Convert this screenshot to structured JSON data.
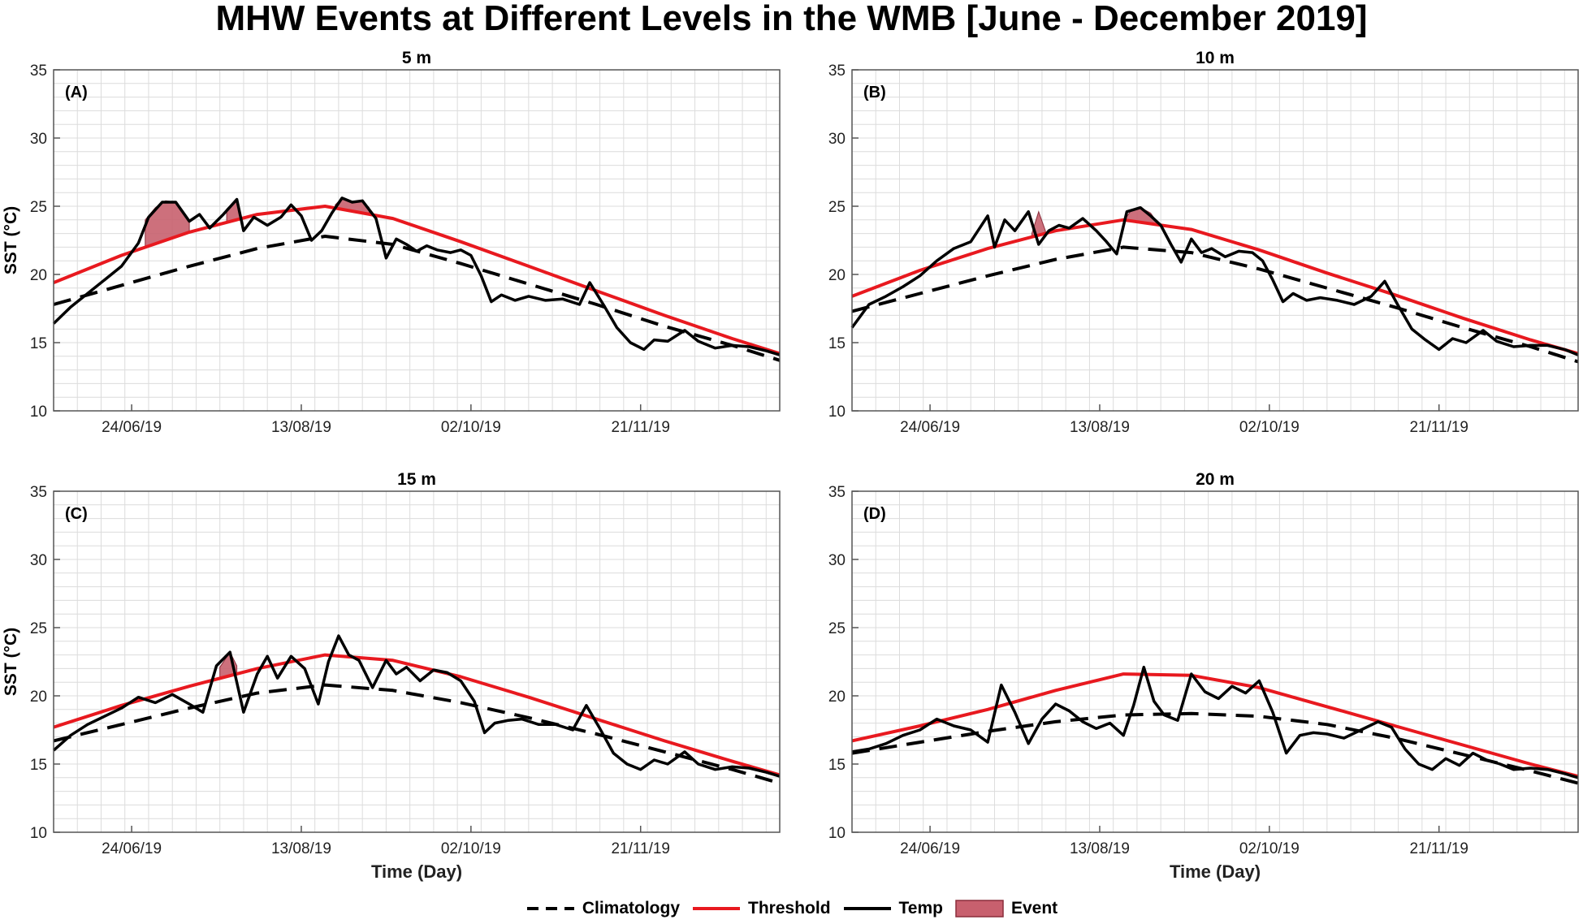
{
  "figure": {
    "title": "MHW Events at Different Levels in the WMB [June - December 2019]"
  },
  "legend": {
    "items": [
      {
        "label": "Climatology",
        "style": "dashed",
        "color": "#000000"
      },
      {
        "label": "Threshold",
        "style": "line",
        "color": "#e8191f"
      },
      {
        "label": "Temp",
        "style": "line",
        "color": "#000000"
      },
      {
        "label": "Event",
        "style": "fill",
        "color": "#c8606e"
      }
    ]
  },
  "chart_data": [
    {
      "type": "line",
      "panel_label": "(A)",
      "title": "5 m",
      "xlabel": "",
      "ylabel": "SST (°C)",
      "ylim": [
        10,
        35
      ],
      "yticks": [
        10,
        15,
        20,
        25,
        30,
        35
      ],
      "xlim": [
        0,
        214
      ],
      "xticks": [
        {
          "day": 23,
          "label": "24/06/19"
        },
        {
          "day": 73,
          "label": "13/08/19"
        },
        {
          "day": 123,
          "label": "02/10/19"
        },
        {
          "day": 173,
          "label": "21/11/19"
        }
      ],
      "grid": true,
      "series": [
        {
          "name": "Climatology",
          "x": [
            0,
            20,
            40,
            60,
            80,
            100,
            120,
            140,
            160,
            180,
            200,
            214
          ],
          "values": [
            17.8,
            19.2,
            20.6,
            21.9,
            22.8,
            22.2,
            20.8,
            19.3,
            17.8,
            16.2,
            14.8,
            13.7
          ]
        },
        {
          "name": "Threshold",
          "x": [
            0,
            20,
            40,
            60,
            80,
            100,
            120,
            140,
            160,
            180,
            200,
            214
          ],
          "values": [
            19.4,
            21.4,
            23.1,
            24.4,
            25.0,
            24.1,
            22.4,
            20.6,
            18.8,
            17.0,
            15.3,
            14.2
          ]
        },
        {
          "name": "Temp",
          "x": [
            0,
            5,
            10,
            15,
            20,
            25,
            28,
            32,
            36,
            40,
            43,
            46,
            50,
            54,
            56,
            59,
            63,
            67,
            70,
            73,
            76,
            79,
            82,
            85,
            88,
            91,
            95,
            98,
            101,
            104,
            107,
            110,
            113,
            117,
            120,
            123,
            126,
            129,
            132,
            136,
            140,
            145,
            150,
            155,
            158,
            162,
            166,
            170,
            174,
            177,
            181,
            186,
            190,
            195,
            200,
            205,
            210,
            214
          ],
          "values": [
            16.4,
            17.6,
            18.6,
            19.6,
            20.6,
            22.3,
            24.2,
            25.3,
            25.3,
            23.9,
            24.4,
            23.4,
            24.4,
            25.5,
            23.2,
            24.2,
            23.6,
            24.2,
            25.1,
            24.3,
            22.5,
            23.2,
            24.5,
            25.6,
            25.3,
            25.4,
            24.1,
            21.2,
            22.6,
            22.2,
            21.7,
            22.1,
            21.8,
            21.6,
            21.8,
            21.4,
            19.9,
            18.0,
            18.5,
            18.1,
            18.4,
            18.1,
            18.2,
            17.8,
            19.4,
            17.8,
            16.1,
            15.0,
            14.5,
            15.2,
            15.1,
            15.9,
            15.1,
            14.6,
            14.8,
            14.7,
            14.4,
            14.1
          ]
        }
      ],
      "events": [
        {
          "x": [
            27,
            30,
            33,
            36,
            38,
            40
          ],
          "values": [
            24.0,
            24.9,
            25.4,
            25.3,
            24.6,
            23.9
          ]
        },
        {
          "x": [
            51,
            54,
            55
          ],
          "values": [
            24.8,
            25.5,
            24.6
          ]
        },
        {
          "x": [
            83,
            85,
            88,
            91,
            93
          ],
          "values": [
            25.1,
            25.6,
            25.3,
            25.4,
            24.9
          ]
        }
      ]
    },
    {
      "type": "line",
      "panel_label": "(B)",
      "title": "10 m",
      "xlabel": "",
      "ylabel": "",
      "ylim": [
        10,
        35
      ],
      "yticks": [
        10,
        15,
        20,
        25,
        30,
        35
      ],
      "xlim": [
        0,
        214
      ],
      "xticks": [
        {
          "day": 23,
          "label": "24/06/19"
        },
        {
          "day": 73,
          "label": "13/08/19"
        },
        {
          "day": 123,
          "label": "02/10/19"
        },
        {
          "day": 173,
          "label": "21/11/19"
        }
      ],
      "grid": true,
      "series": [
        {
          "name": "Climatology",
          "x": [
            0,
            20,
            40,
            60,
            80,
            100,
            120,
            140,
            160,
            180,
            200,
            214
          ],
          "values": [
            17.3,
            18.6,
            19.9,
            21.1,
            22.0,
            21.6,
            20.4,
            19.0,
            17.6,
            16.1,
            14.7,
            13.6
          ]
        },
        {
          "name": "Threshold",
          "x": [
            0,
            20,
            40,
            60,
            80,
            100,
            120,
            140,
            160,
            180,
            200,
            214
          ],
          "values": [
            18.4,
            20.3,
            21.9,
            23.2,
            24.0,
            23.3,
            21.8,
            20.1,
            18.5,
            16.8,
            15.2,
            14.2
          ]
        },
        {
          "name": "Temp",
          "x": [
            0,
            5,
            10,
            15,
            20,
            25,
            30,
            35,
            40,
            42,
            45,
            48,
            52,
            55,
            58,
            61,
            64,
            68,
            72,
            75,
            78,
            81,
            85,
            88,
            91,
            94,
            97,
            100,
            103,
            106,
            110,
            114,
            118,
            121,
            124,
            127,
            130,
            134,
            138,
            143,
            148,
            153,
            157,
            161,
            165,
            169,
            173,
            177,
            181,
            186,
            190,
            195,
            200,
            205,
            210,
            214
          ],
          "values": [
            16.1,
            17.8,
            18.4,
            19.1,
            19.9,
            21.0,
            21.9,
            22.4,
            24.3,
            22.0,
            24.0,
            23.2,
            24.6,
            22.2,
            23.2,
            23.6,
            23.4,
            24.1,
            23.2,
            22.4,
            21.5,
            24.6,
            24.9,
            24.3,
            23.6,
            22.2,
            20.9,
            22.6,
            21.6,
            21.9,
            21.3,
            21.7,
            21.6,
            21.0,
            19.6,
            18.0,
            18.6,
            18.1,
            18.3,
            18.1,
            17.8,
            18.4,
            19.5,
            17.7,
            16.0,
            15.2,
            14.5,
            15.3,
            15.0,
            15.9,
            15.1,
            14.7,
            14.8,
            14.8,
            14.5,
            14.1
          ]
        }
      ],
      "events": [
        {
          "x": [
            53,
            55,
            57
          ],
          "values": [
            23.0,
            24.6,
            23.2
          ]
        },
        {
          "x": [
            80,
            82,
            85,
            88,
            90
          ],
          "values": [
            23.9,
            24.6,
            24.9,
            24.5,
            23.8
          ]
        }
      ]
    },
    {
      "type": "line",
      "panel_label": "(C)",
      "title": "15 m",
      "xlabel": "Time (Day)",
      "ylabel": "SST (°C)",
      "ylim": [
        10,
        35
      ],
      "yticks": [
        10,
        15,
        20,
        25,
        30,
        35
      ],
      "xlim": [
        0,
        214
      ],
      "xticks": [
        {
          "day": 23,
          "label": "24/06/19"
        },
        {
          "day": 73,
          "label": "13/08/19"
        },
        {
          "day": 123,
          "label": "02/10/19"
        },
        {
          "day": 173,
          "label": "21/11/19"
        }
      ],
      "grid": true,
      "series": [
        {
          "name": "Climatology",
          "x": [
            0,
            20,
            40,
            60,
            80,
            100,
            120,
            140,
            160,
            180,
            200,
            214
          ],
          "values": [
            16.7,
            17.9,
            19.1,
            20.2,
            20.8,
            20.4,
            19.5,
            18.4,
            17.2,
            15.9,
            14.6,
            13.6
          ]
        },
        {
          "name": "Threshold",
          "x": [
            0,
            20,
            40,
            60,
            80,
            100,
            120,
            140,
            160,
            180,
            200,
            214
          ],
          "values": [
            17.7,
            19.3,
            20.7,
            22.0,
            23.0,
            22.6,
            21.4,
            19.9,
            18.3,
            16.7,
            15.2,
            14.2
          ]
        },
        {
          "name": "Temp",
          "x": [
            0,
            5,
            10,
            15,
            20,
            25,
            30,
            35,
            40,
            44,
            48,
            52,
            56,
            60,
            63,
            66,
            70,
            74,
            78,
            81,
            84,
            87,
            90,
            94,
            98,
            101,
            104,
            108,
            112,
            116,
            120,
            124,
            127,
            130,
            134,
            138,
            143,
            148,
            153,
            157,
            161,
            165,
            169,
            173,
            177,
            181,
            186,
            190,
            195,
            200,
            205,
            210,
            214
          ],
          "values": [
            16.0,
            17.1,
            17.9,
            18.5,
            19.1,
            19.9,
            19.5,
            20.1,
            19.4,
            18.8,
            22.2,
            23.2,
            18.8,
            21.6,
            22.9,
            21.3,
            22.9,
            22.0,
            19.4,
            22.5,
            24.4,
            23.0,
            22.6,
            20.6,
            22.6,
            21.6,
            22.1,
            21.1,
            21.9,
            21.7,
            21.1,
            19.6,
            17.3,
            18.0,
            18.2,
            18.3,
            17.9,
            17.9,
            17.5,
            19.3,
            17.6,
            15.8,
            15.0,
            14.6,
            15.3,
            15.0,
            15.9,
            15.0,
            14.6,
            14.8,
            14.7,
            14.4,
            14.1
          ]
        }
      ],
      "events": [
        {
          "x": [
            49,
            52,
            54
          ],
          "values": [
            22.1,
            23.2,
            22.2
          ]
        }
      ]
    },
    {
      "type": "line",
      "panel_label": "(D)",
      "title": "20 m",
      "xlabel": "Time (Day)",
      "ylabel": "",
      "ylim": [
        10,
        35
      ],
      "yticks": [
        10,
        15,
        20,
        25,
        30,
        35
      ],
      "xlim": [
        0,
        214
      ],
      "xticks": [
        {
          "day": 23,
          "label": "24/06/19"
        },
        {
          "day": 73,
          "label": "13/08/19"
        },
        {
          "day": 123,
          "label": "02/10/19"
        },
        {
          "day": 173,
          "label": "21/11/19"
        }
      ],
      "grid": true,
      "series": [
        {
          "name": "Climatology",
          "x": [
            0,
            20,
            40,
            60,
            80,
            100,
            120,
            140,
            160,
            180,
            200,
            214
          ],
          "values": [
            15.8,
            16.6,
            17.4,
            18.1,
            18.6,
            18.7,
            18.5,
            17.9,
            16.9,
            15.7,
            14.5,
            13.6
          ]
        },
        {
          "name": "Threshold",
          "x": [
            0,
            20,
            40,
            60,
            80,
            100,
            120,
            140,
            160,
            180,
            200,
            214
          ],
          "values": [
            16.7,
            17.8,
            19.0,
            20.4,
            21.6,
            21.5,
            20.6,
            19.2,
            17.8,
            16.4,
            15.0,
            14.1
          ]
        },
        {
          "name": "Temp",
          "x": [
            0,
            5,
            10,
            15,
            20,
            25,
            30,
            35,
            40,
            44,
            48,
            52,
            56,
            60,
            64,
            68,
            72,
            76,
            80,
            83,
            86,
            89,
            92,
            96,
            100,
            104,
            108,
            112,
            116,
            120,
            124,
            128,
            132,
            136,
            140,
            145,
            150,
            155,
            159,
            163,
            167,
            171,
            175,
            179,
            183,
            187,
            191,
            195,
            200,
            205,
            210,
            214
          ],
          "values": [
            15.9,
            16.1,
            16.5,
            17.1,
            17.5,
            18.3,
            17.8,
            17.5,
            16.6,
            20.8,
            18.8,
            16.5,
            18.3,
            19.4,
            18.9,
            18.1,
            17.6,
            18.0,
            17.1,
            19.3,
            22.1,
            19.6,
            18.6,
            18.2,
            21.6,
            20.3,
            19.8,
            20.7,
            20.2,
            21.1,
            18.8,
            15.8,
            17.1,
            17.3,
            17.2,
            16.9,
            17.5,
            18.1,
            17.7,
            16.1,
            15.0,
            14.6,
            15.4,
            14.9,
            15.8,
            15.3,
            15.0,
            14.6,
            14.7,
            14.6,
            14.3,
            14.0
          ]
        }
      ],
      "events": []
    }
  ]
}
